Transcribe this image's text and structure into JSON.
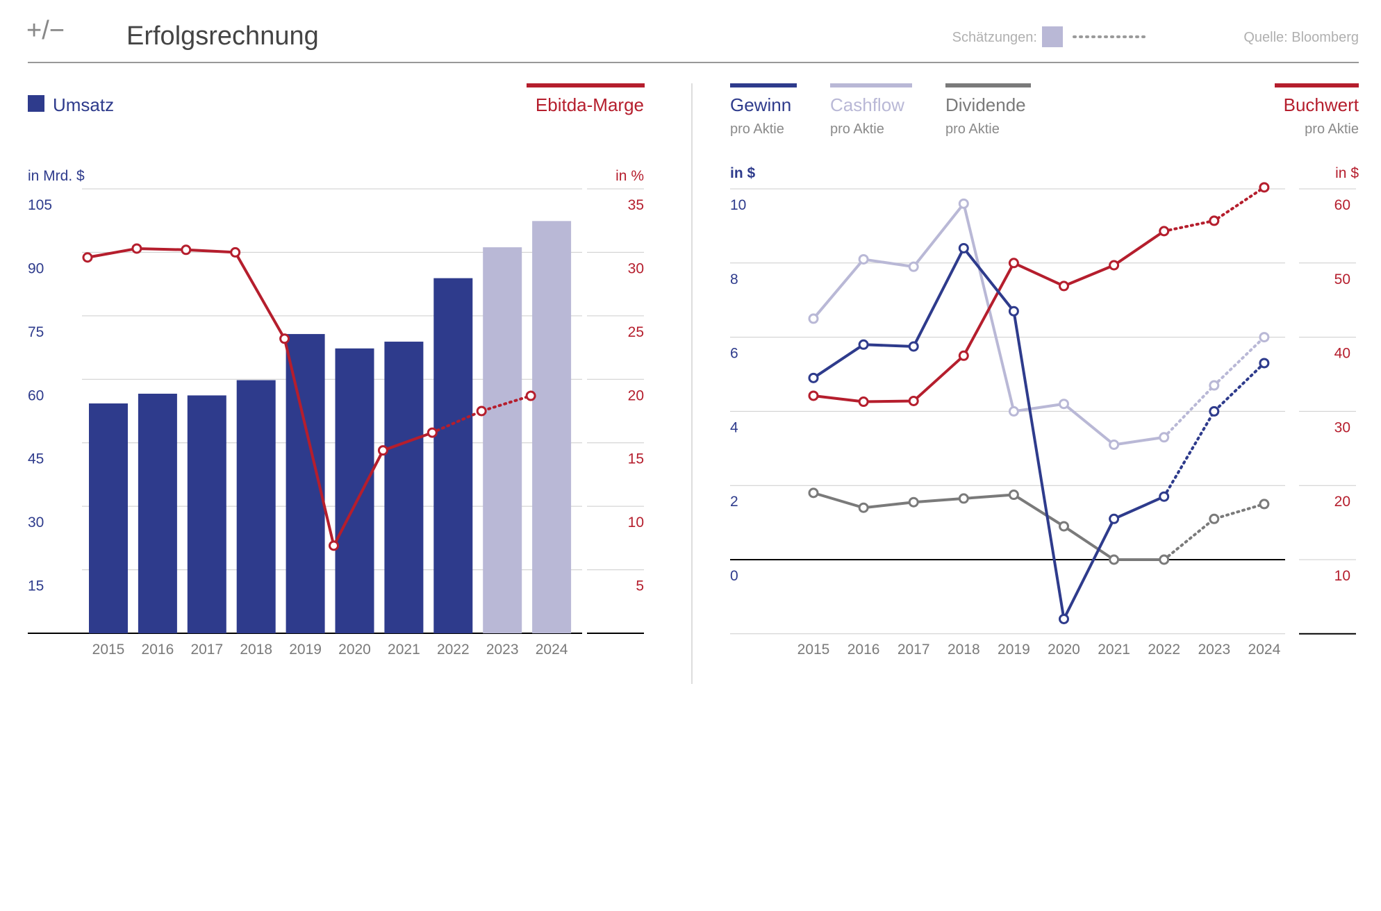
{
  "header": {
    "logo": "+/−",
    "title": "Erfolgsrechnung",
    "estimates_label": "Schätzungen:",
    "source": "Quelle: Bloomberg"
  },
  "colors": {
    "navy": "#2e3b8c",
    "lavender": "#b9b8d6",
    "red": "#b51e2d",
    "gray": "#7a7a7a",
    "axis_text": "#7a7a7a"
  },
  "left": {
    "legend_bar": "Umsatz",
    "legend_line": "Ebitda-Marge",
    "left_unit": "in Mrd. $",
    "right_unit": "in %"
  },
  "right": {
    "legend": [
      {
        "name": "Gewinn",
        "sub": "pro Aktie"
      },
      {
        "name": "Cashflow",
        "sub": "pro Aktie"
      },
      {
        "name": "Dividende",
        "sub": "pro Aktie"
      },
      {
        "name": "Buchwert",
        "sub": "pro Aktie"
      }
    ],
    "left_unit": "in $",
    "right_unit": "in $"
  },
  "chart_data": [
    {
      "type": "bar",
      "title": "Erfolgsrechnung",
      "categories": [
        "2015",
        "2016",
        "2017",
        "2018",
        "2019",
        "2020",
        "2021",
        "2022",
        "2023",
        "2024"
      ],
      "estimate_from_index": 8,
      "ylim_left": [
        0,
        105
      ],
      "yticks_left": [
        15,
        30,
        45,
        60,
        75,
        90,
        105
      ],
      "ylim_right": [
        0,
        35
      ],
      "yticks_right": [
        5,
        10,
        15,
        20,
        25,
        30,
        35
      ],
      "series": [
        {
          "name": "Umsatz",
          "axis": "left",
          "type": "bar",
          "color": "#2e3b8c",
          "values": [
            54.3,
            56.6,
            56.2,
            59.8,
            70.7,
            67.3,
            68.9,
            83.9,
            91.2,
            97.4
          ]
        },
        {
          "name": "Ebitda-Marge",
          "axis": "right",
          "type": "line",
          "color": "#b51e2d",
          "values": [
            29.6,
            30.3,
            30.2,
            30.0,
            23.2,
            6.9,
            14.4,
            15.8,
            17.5,
            18.7
          ]
        }
      ]
    },
    {
      "type": "line",
      "categories": [
        "2015",
        "2016",
        "2017",
        "2018",
        "2019",
        "2020",
        "2021",
        "2022",
        "2023",
        "2024"
      ],
      "estimate_from_index": 8,
      "ylim_left": [
        -2,
        10
      ],
      "yticks_left": [
        0,
        2,
        4,
        6,
        8,
        10
      ],
      "ylim_right": [
        0,
        60
      ],
      "yticks_right": [
        10,
        20,
        30,
        40,
        50,
        60
      ],
      "series": [
        {
          "name": "Gewinn",
          "axis": "left",
          "color": "#2e3b8c",
          "values": [
            4.9,
            5.8,
            5.75,
            8.4,
            6.7,
            -1.6,
            1.1,
            1.7,
            4.0,
            5.3
          ]
        },
        {
          "name": "Cashflow",
          "axis": "left",
          "color": "#b9b8d6",
          "values": [
            6.5,
            8.1,
            7.9,
            9.6,
            4.0,
            4.2,
            3.1,
            3.3,
            4.7,
            6.0
          ]
        },
        {
          "name": "Dividende",
          "axis": "left",
          "color": "#7a7a7a",
          "values": [
            1.8,
            1.4,
            1.55,
            1.65,
            1.75,
            0.9,
            0.0,
            0.0,
            1.1,
            1.5
          ]
        },
        {
          "name": "Buchwert",
          "axis": "right",
          "color": "#b51e2d",
          "values": [
            32.1,
            31.3,
            31.4,
            37.5,
            50.0,
            46.9,
            49.7,
            54.3,
            55.7,
            60.2
          ]
        }
      ]
    }
  ]
}
